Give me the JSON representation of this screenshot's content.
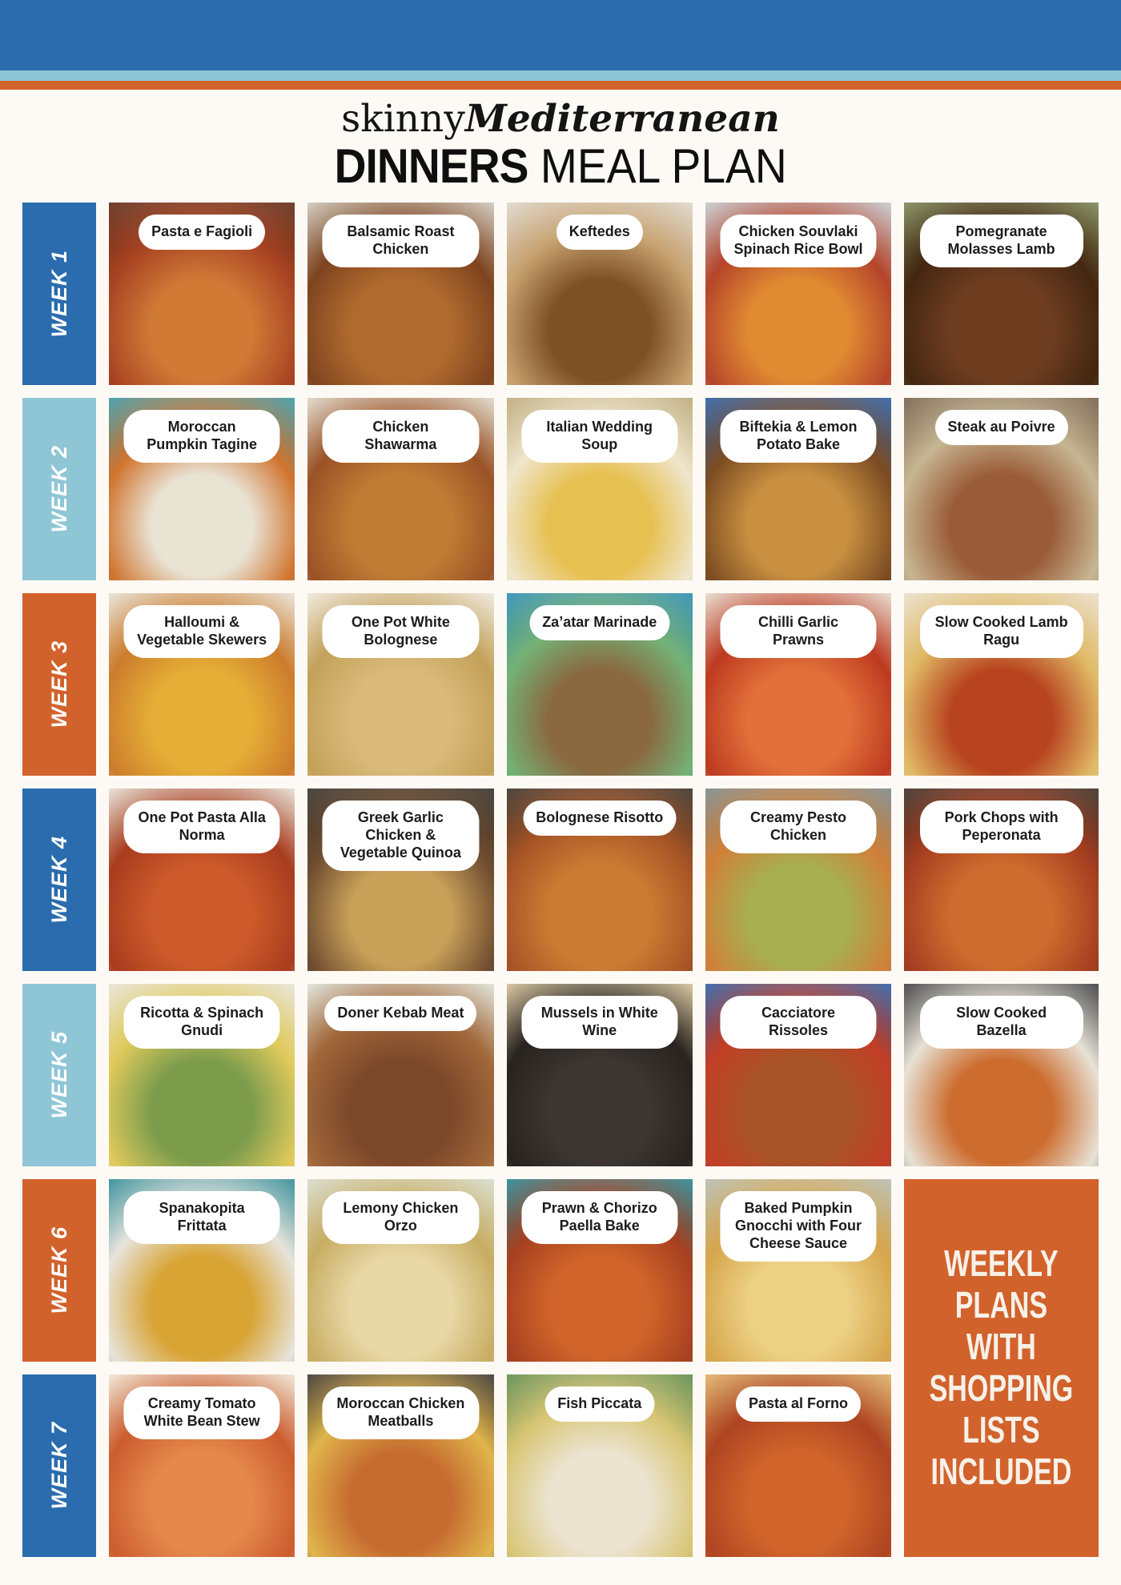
{
  "page": {
    "background": "#fdfaf5",
    "top_bars": [
      {
        "name": "dark-blue-bar",
        "color": "#2a6cae"
      },
      {
        "name": "teal-bar",
        "color": "#8fc6d6"
      },
      {
        "name": "orange-bar",
        "color": "#d2622b"
      }
    ]
  },
  "header": {
    "brand_prefix": "skinny",
    "brand_suffix": "Mediterranean",
    "title_bold": "DINNERS",
    "title_light": " MEAL PLAN"
  },
  "theme": {
    "week_blue": "#2a6cae",
    "week_light_blue": "#8fc6d6",
    "week_orange": "#d2622b",
    "pill_background": "#ffffff",
    "pill_text": "#1c1c1c"
  },
  "promo": {
    "text": "WEEKLY\nPLANS\nWITH\nSHOPPING\nLISTS\nINCLUDED",
    "background": "#d2622b",
    "text_color": "#f6f1e9"
  },
  "weeks": [
    {
      "label": "WEEK 1",
      "color": "#2a6cae",
      "meals": [
        {
          "label": "Pasta e Fagioli",
          "photo_colors": [
            "#d07a36",
            "#a84322",
            "#5e2c18"
          ]
        },
        {
          "label": "Balsamic Roast Chicken",
          "photo_colors": [
            "#b06a2e",
            "#7e441f",
            "#cfc9bc"
          ]
        },
        {
          "label": "Keftedes",
          "photo_colors": [
            "#7e5026",
            "#c7a270",
            "#ddd6cb"
          ]
        },
        {
          "label": "Chicken Souvlaki Spinach Rice Bowl",
          "photo_colors": [
            "#e08a32",
            "#b5442a",
            "#c5ccd2"
          ]
        },
        {
          "label": "Pomegranate Molasses Lamb",
          "photo_colors": [
            "#6e3d20",
            "#432611",
            "#7e8a58"
          ]
        }
      ]
    },
    {
      "label": "WEEK 2",
      "color": "#8fc6d6",
      "meals": [
        {
          "label": "Moroccan Pumpkin Tagine",
          "photo_colors": [
            "#e9e3d4",
            "#d0742e",
            "#3a9aa8"
          ]
        },
        {
          "label": "Chicken Shawarma",
          "photo_colors": [
            "#c07c34",
            "#9a5226",
            "#dfdaca"
          ]
        },
        {
          "label": "Italian Wedding Soup",
          "photo_colors": [
            "#e6c050",
            "#efe6cc",
            "#bba877"
          ]
        },
        {
          "label": "Biftekia & Lemon Potato Bake",
          "photo_colors": [
            "#c89040",
            "#7c4c22",
            "#2d5fa6"
          ]
        },
        {
          "label": "Steak au Poivre",
          "photo_colors": [
            "#9a5c38",
            "#c7b693",
            "#746049"
          ]
        }
      ]
    },
    {
      "label": "WEEK 3",
      "color": "#d2622b",
      "meals": [
        {
          "label": "Halloumi & Vegetable Skewers",
          "photo_colors": [
            "#e5ae36",
            "#cc7c2c",
            "#e7e2d6"
          ]
        },
        {
          "label": "One Pot White Bolognese",
          "photo_colors": [
            "#d9ba7a",
            "#c3a159",
            "#efe8dc"
          ]
        },
        {
          "label": "Za’atar Marinade",
          "photo_colors": [
            "#8a6840",
            "#74b276",
            "#2d8cb2"
          ]
        },
        {
          "label": "Chilli Garlic Prawns",
          "photo_colors": [
            "#e2703a",
            "#bd3a20",
            "#e6dacc"
          ]
        },
        {
          "label": "Slow Cooked Lamb Ragu",
          "photo_colors": [
            "#b8441f",
            "#e0ba66",
            "#eadfcb"
          ]
        }
      ]
    },
    {
      "label": "WEEK 4",
      "color": "#2a6cae",
      "meals": [
        {
          "label": "One Pot Pasta Alla Norma",
          "photo_colors": [
            "#cc5a2a",
            "#a83c1e",
            "#e6e0d4"
          ]
        },
        {
          "label": "Greek Garlic Chicken & Vegetable Quinoa",
          "photo_colors": [
            "#c8a058",
            "#6e4c30",
            "#38322a"
          ]
        },
        {
          "label": "Bolognese Risotto",
          "photo_colors": [
            "#cc7c32",
            "#a65426",
            "#3a322a"
          ]
        },
        {
          "label": "Creamy Pesto Chicken",
          "photo_colors": [
            "#a8ae52",
            "#d08038",
            "#7d898b"
          ]
        },
        {
          "label": "Pork Chops with Peperonata",
          "photo_colors": [
            "#cc6c2e",
            "#a63e20",
            "#3a2f26"
          ]
        }
      ]
    },
    {
      "label": "WEEK 5",
      "color": "#8fc6d6",
      "meals": [
        {
          "label": "Ricotta & Spinach Gnudi",
          "photo_colors": [
            "#7c9c4c",
            "#e0ca5c",
            "#e8e3d7"
          ]
        },
        {
          "label": "Doner Kebab Meat",
          "photo_colors": [
            "#7c482a",
            "#a2683a",
            "#dfe3d8"
          ]
        },
        {
          "label": "Mussels in White Wine",
          "photo_colors": [
            "#3c3531",
            "#27231f",
            "#d5c198"
          ]
        },
        {
          "label": "Cacciatore Rissoles",
          "photo_colors": [
            "#a85428",
            "#c23e26",
            "#2d5fa6"
          ]
        },
        {
          "label": "Slow Cooked Bazella",
          "photo_colors": [
            "#cc6c2e",
            "#e7e2d6",
            "#3b3b3d"
          ]
        }
      ]
    },
    {
      "label": "WEEK 6",
      "color": "#d2622b",
      "meals": [
        {
          "label": "Spanakopita Frittata",
          "photo_colors": [
            "#d8a434",
            "#e7e4dc",
            "#2d8a95"
          ]
        },
        {
          "label": "Lemony Chicken Orzo",
          "photo_colors": [
            "#e8d8a6",
            "#c8ac62",
            "#d6dccc"
          ]
        },
        {
          "label": "Prawn & Chorizo Paella Bake",
          "photo_colors": [
            "#d0642a",
            "#a64020",
            "#278793"
          ]
        },
        {
          "label": "Baked Pumpkin Gnocchi with Four Cheese Sauce",
          "photo_colors": [
            "#ecd084",
            "#d6a64c",
            "#b5bdb2"
          ]
        }
      ]
    },
    {
      "label": "WEEK 7",
      "color": "#2a6cae",
      "meals": [
        {
          "label": "Creamy Tomato White Bean Stew",
          "photo_colors": [
            "#e4884c",
            "#cc5c2e",
            "#efe6d4"
          ]
        },
        {
          "label": "Moroccan Chicken Meatballs",
          "photo_colors": [
            "#c66c30",
            "#e0b54c",
            "#3a342e"
          ]
        },
        {
          "label": "Fish Piccata",
          "photo_colors": [
            "#ece3d0",
            "#d8c674",
            "#5e8a4c"
          ]
        },
        {
          "label": "Pasta al Forno",
          "photo_colors": [
            "#d0642a",
            "#ae4422",
            "#dfb368"
          ]
        }
      ]
    }
  ]
}
